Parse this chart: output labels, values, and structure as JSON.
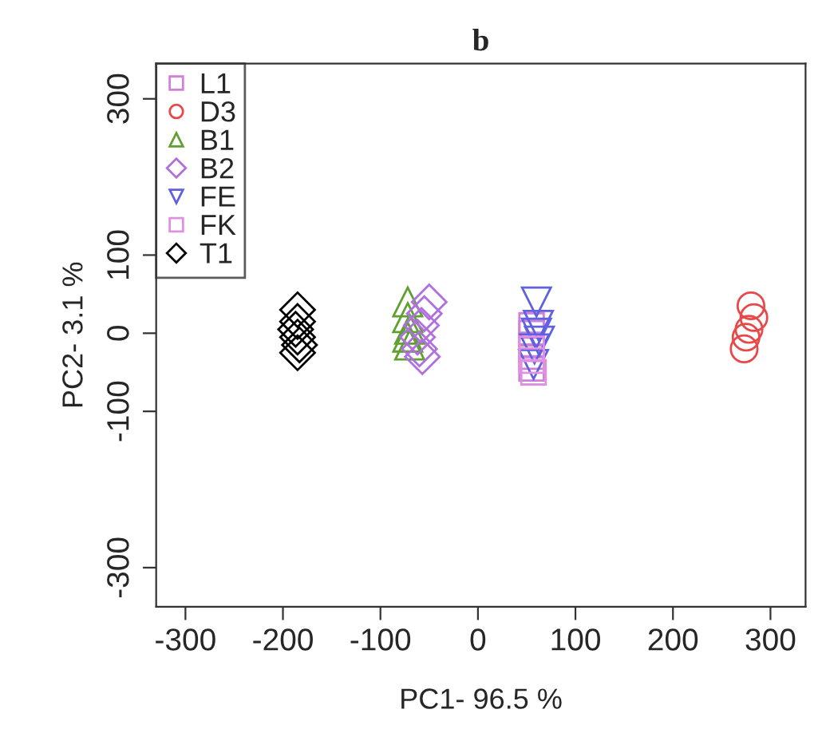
{
  "chart_data": {
    "type": "scatter",
    "title": "b",
    "xlabel": "PC1- 96.5 %",
    "ylabel": "PC2- 3.1 %",
    "xlim": [
      -330,
      336
    ],
    "ylim": [
      -350,
      345
    ],
    "xticks": [
      -300,
      -200,
      -100,
      0,
      100,
      200,
      300
    ],
    "yticks": [
      -300,
      -100,
      0,
      100,
      300
    ],
    "grid": false,
    "legend": "top left",
    "series": [
      {
        "name": "L1",
        "color": "#d080d8",
        "marker": "square",
        "x": [
          55,
          55,
          55,
          55,
          55
        ],
        "values": [
          10,
          0,
          -15,
          -30,
          -45
        ]
      },
      {
        "name": "D3",
        "color": "#e84848",
        "marker": "circle",
        "x": [
          280,
          283,
          278,
          275,
          273
        ],
        "values": [
          35,
          20,
          5,
          -5,
          -20
        ]
      },
      {
        "name": "B1",
        "color": "#60a030",
        "marker": "triangle",
        "x": [
          -72,
          -72,
          -70,
          -72,
          -70
        ],
        "values": [
          40,
          20,
          5,
          -5,
          -15
        ]
      },
      {
        "name": "B2",
        "color": "#b070e0",
        "marker": "diamond",
        "x": [
          -50,
          -55,
          -58,
          -62,
          -60,
          -57
        ],
        "values": [
          40,
          25,
          10,
          -5,
          -20,
          -30
        ]
      },
      {
        "name": "FE",
        "color": "#6060e0",
        "marker": "triangle_down",
        "x": [
          60,
          62,
          60,
          63,
          58,
          57
        ],
        "values": [
          40,
          10,
          0,
          -10,
          -20,
          -40
        ]
      },
      {
        "name": "FK",
        "color": "#e090e0",
        "marker": "square",
        "x": [
          55,
          55,
          57
        ],
        "values": [
          -20,
          -35,
          -50
        ]
      },
      {
        "name": "T1",
        "color": "#000000",
        "marker": "diamond",
        "x": [
          -185,
          -185,
          -187,
          -185,
          -183,
          -185
        ],
        "values": [
          30,
          15,
          5,
          -5,
          -15,
          -25
        ]
      }
    ]
  }
}
